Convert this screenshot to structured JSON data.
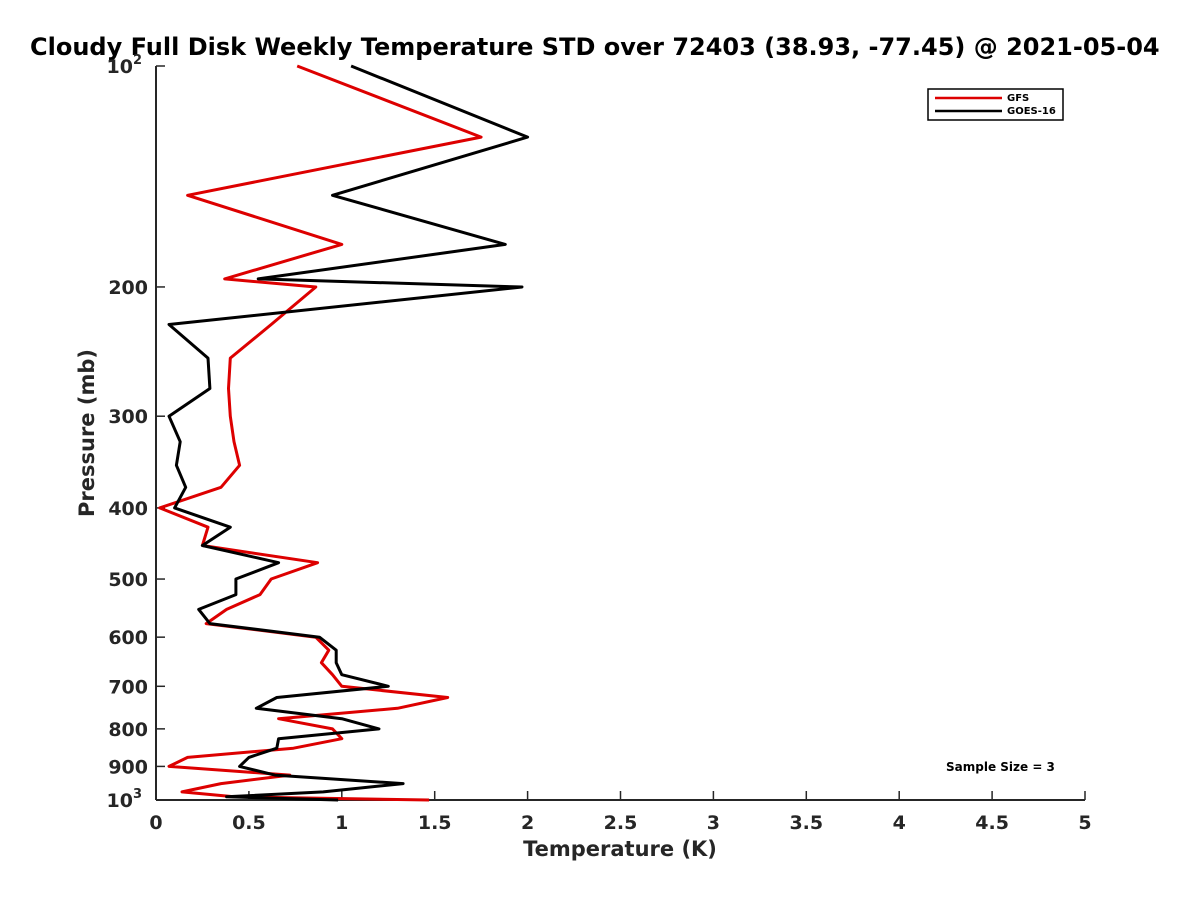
{
  "chart_data": {
    "type": "line",
    "title": "Cloudy Full Disk Weekly Temperature STD over 72403 (38.93, -77.45) @ 2021-05-04",
    "xlabel": "Temperature (K)",
    "ylabel": "Pressure (mb)",
    "xlim": [
      0,
      5
    ],
    "ylim": [
      1000,
      100
    ],
    "y_scale": "log",
    "y_reversed": true,
    "x_ticks": [
      "0",
      "0.5",
      "1",
      "1.5",
      "2",
      "2.5",
      "3",
      "3.5",
      "4",
      "4.5",
      "5"
    ],
    "y_ticks": [
      {
        "value": 100,
        "base": "10",
        "exp": "2"
      },
      {
        "value": 200,
        "label": "200"
      },
      {
        "value": 300,
        "label": "300"
      },
      {
        "value": 400,
        "label": "400"
      },
      {
        "value": 500,
        "label": "500"
      },
      {
        "value": 600,
        "label": "600"
      },
      {
        "value": 700,
        "label": "700"
      },
      {
        "value": 800,
        "label": "800"
      },
      {
        "value": 900,
        "label": "900"
      },
      {
        "value": 1000,
        "base": "10",
        "exp": "3"
      }
    ],
    "grid": false,
    "legend_position": "top-right",
    "annotation": "Sample Size = 3",
    "series": [
      {
        "name": "GFS",
        "color": "#dd0000",
        "points": [
          [
            0.76,
            100
          ],
          [
            1.75,
            125
          ],
          [
            0.17,
            150
          ],
          [
            1.0,
            175
          ],
          [
            0.37,
            195
          ],
          [
            0.86,
            200
          ],
          [
            0.62,
            225
          ],
          [
            0.4,
            250
          ],
          [
            0.39,
            275
          ],
          [
            0.4,
            300
          ],
          [
            0.42,
            325
          ],
          [
            0.45,
            350
          ],
          [
            0.35,
            375
          ],
          [
            0.02,
            400
          ],
          [
            0.28,
            425
          ],
          [
            0.25,
            450
          ],
          [
            0.87,
            475
          ],
          [
            0.62,
            500
          ],
          [
            0.56,
            525
          ],
          [
            0.38,
            550
          ],
          [
            0.27,
            575
          ],
          [
            0.86,
            600
          ],
          [
            0.93,
            625
          ],
          [
            0.89,
            650
          ],
          [
            0.95,
            675
          ],
          [
            1.0,
            700
          ],
          [
            1.57,
            725
          ],
          [
            1.3,
            750
          ],
          [
            0.66,
            775
          ],
          [
            0.95,
            800
          ],
          [
            1.0,
            825
          ],
          [
            0.74,
            850
          ],
          [
            0.17,
            875
          ],
          [
            0.07,
            900
          ],
          [
            0.72,
            925
          ],
          [
            0.35,
            950
          ],
          [
            0.14,
            975
          ],
          [
            0.42,
            990
          ],
          [
            1.47,
            1000
          ]
        ]
      },
      {
        "name": "GOES-16",
        "color": "#000000",
        "points": [
          [
            1.05,
            100
          ],
          [
            2.0,
            125
          ],
          [
            0.95,
            150
          ],
          [
            1.88,
            175
          ],
          [
            0.55,
            195
          ],
          [
            1.97,
            200
          ],
          [
            0.07,
            225
          ],
          [
            0.28,
            250
          ],
          [
            0.29,
            275
          ],
          [
            0.07,
            300
          ],
          [
            0.13,
            325
          ],
          [
            0.11,
            350
          ],
          [
            0.16,
            375
          ],
          [
            0.1,
            400
          ],
          [
            0.4,
            425
          ],
          [
            0.25,
            450
          ],
          [
            0.66,
            475
          ],
          [
            0.43,
            500
          ],
          [
            0.43,
            525
          ],
          [
            0.23,
            550
          ],
          [
            0.29,
            575
          ],
          [
            0.88,
            600
          ],
          [
            0.97,
            625
          ],
          [
            0.97,
            650
          ],
          [
            1.0,
            675
          ],
          [
            1.25,
            700
          ],
          [
            0.65,
            725
          ],
          [
            0.54,
            750
          ],
          [
            1.0,
            775
          ],
          [
            1.2,
            800
          ],
          [
            0.66,
            825
          ],
          [
            0.65,
            850
          ],
          [
            0.5,
            875
          ],
          [
            0.45,
            900
          ],
          [
            0.64,
            925
          ],
          [
            1.33,
            950
          ],
          [
            0.9,
            975
          ],
          [
            0.38,
            990
          ],
          [
            0.98,
            1000
          ]
        ]
      }
    ]
  }
}
